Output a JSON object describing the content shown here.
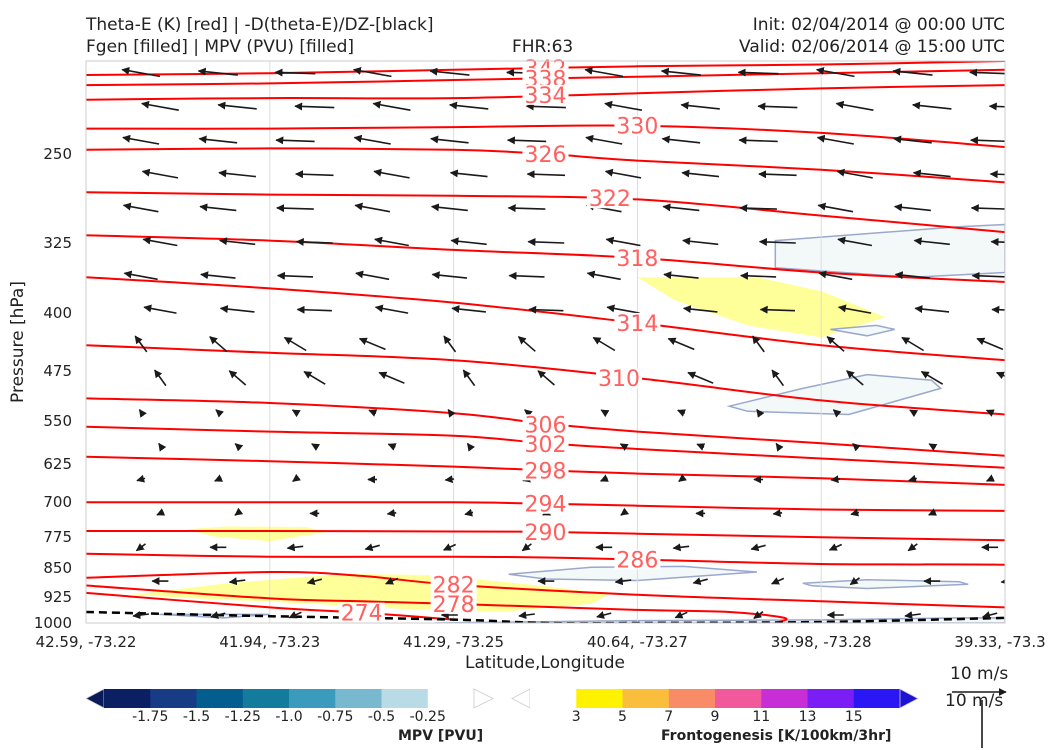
{
  "header": {
    "title_left_1": "Theta-E (K) [red] | -D(theta-E)/DZ-[black]",
    "title_left_2": "Fgen [filled] | MPV (PVU) [filled]",
    "fhr": "FHR:63",
    "init": "Init: 02/04/2014 @ 00:00 UTC",
    "valid": "Valid: 02/06/2014 @ 15:00 UTC"
  },
  "chart_data": {
    "type": "cross-section",
    "xlabel": "Latitude,Longitude",
    "ylabel": "Pressure [hPa]",
    "x_ticks": [
      "42.59, -73.22",
      "41.94, -73.23",
      "41.29, -73.25",
      "40.64, -73.27",
      "39.98, -73.28",
      "39.33, -73.3"
    ],
    "y_ticks": [
      250,
      325,
      400,
      475,
      550,
      625,
      700,
      775,
      850,
      925,
      1000
    ],
    "ylim": [
      1000,
      190
    ],
    "y_scale": "log",
    "theta_e_contours": [
      {
        "label": "342",
        "points": [
          [
            0,
            198
          ],
          [
            0.2,
            197
          ],
          [
            0.4,
            195
          ],
          [
            0.6,
            193
          ],
          [
            0.8,
            192
          ],
          [
            1,
            190
          ]
        ],
        "label_at": [
          0.5,
          194
        ]
      },
      {
        "label": "338",
        "points": [
          [
            0,
            204
          ],
          [
            0.2,
            203
          ],
          [
            0.4,
            201
          ],
          [
            0.6,
            199
          ],
          [
            0.8,
            197
          ],
          [
            1,
            195
          ]
        ],
        "label_at": [
          0.5,
          200
        ]
      },
      {
        "label": "334",
        "points": [
          [
            0,
            213
          ],
          [
            0.2,
            212
          ],
          [
            0.4,
            212
          ],
          [
            0.6,
            209
          ],
          [
            0.8,
            206
          ],
          [
            1,
            204
          ]
        ],
        "label_at": [
          0.5,
          210
        ]
      },
      {
        "label": "330",
        "points": [
          [
            0,
            232
          ],
          [
            0.2,
            232
          ],
          [
            0.4,
            231
          ],
          [
            0.6,
            230
          ],
          [
            0.8,
            235
          ],
          [
            1,
            245
          ]
        ],
        "label_at": [
          0.6,
          230
        ]
      },
      {
        "label": "326",
        "points": [
          [
            0,
            247
          ],
          [
            0.2,
            246
          ],
          [
            0.4,
            247
          ],
          [
            0.5,
            250
          ],
          [
            0.6,
            255
          ],
          [
            0.8,
            262
          ],
          [
            1,
            272
          ]
        ],
        "label_at": [
          0.5,
          250
        ]
      },
      {
        "label": "322",
        "points": [
          [
            0,
            280
          ],
          [
            0.2,
            282
          ],
          [
            0.4,
            283
          ],
          [
            0.6,
            286
          ],
          [
            0.8,
            300
          ],
          [
            1,
            315
          ]
        ],
        "label_at": [
          0.57,
          285
        ]
      },
      {
        "label": "318",
        "points": [
          [
            0,
            318
          ],
          [
            0.2,
            323
          ],
          [
            0.4,
            332
          ],
          [
            0.6,
            340
          ],
          [
            0.8,
            355
          ],
          [
            1,
            365
          ]
        ],
        "label_at": [
          0.6,
          340
        ]
      },
      {
        "label": "314",
        "points": [
          [
            0,
            360
          ],
          [
            0.2,
            372
          ],
          [
            0.4,
            388
          ],
          [
            0.6,
            412
          ],
          [
            0.8,
            440
          ],
          [
            1,
            460
          ]
        ],
        "label_at": [
          0.6,
          412
        ]
      },
      {
        "label": "310",
        "points": [
          [
            0,
            440
          ],
          [
            0.2,
            450
          ],
          [
            0.4,
            460
          ],
          [
            0.6,
            485
          ],
          [
            0.8,
            518
          ],
          [
            1,
            540
          ]
        ],
        "label_at": [
          0.58,
          485
        ]
      },
      {
        "label": "306",
        "points": [
          [
            0,
            515
          ],
          [
            0.2,
            522
          ],
          [
            0.4,
            538
          ],
          [
            0.5,
            555
          ],
          [
            0.6,
            568
          ],
          [
            0.8,
            588
          ],
          [
            1,
            610
          ]
        ],
        "label_at": [
          0.5,
          556
        ]
      },
      {
        "label": "302",
        "points": [
          [
            0,
            560
          ],
          [
            0.2,
            568
          ],
          [
            0.4,
            575
          ],
          [
            0.5,
            588
          ],
          [
            0.6,
            598
          ],
          [
            0.8,
            615
          ],
          [
            1,
            632
          ]
        ],
        "label_at": [
          0.5,
          589
        ]
      },
      {
        "label": "298",
        "points": [
          [
            0,
            612
          ],
          [
            0.2,
            620
          ],
          [
            0.4,
            630
          ],
          [
            0.5,
            637
          ],
          [
            0.6,
            643
          ],
          [
            0.8,
            652
          ],
          [
            1,
            665
          ]
        ],
        "label_at": [
          0.5,
          637
        ]
      },
      {
        "label": "294",
        "points": [
          [
            0,
            700
          ],
          [
            0.2,
            700
          ],
          [
            0.4,
            700
          ],
          [
            0.5,
            703
          ],
          [
            0.6,
            707
          ],
          [
            0.8,
            715
          ],
          [
            1,
            718
          ]
        ],
        "label_at": [
          0.5,
          703
        ]
      },
      {
        "label": "290",
        "points": [
          [
            0,
            762
          ],
          [
            0.2,
            762
          ],
          [
            0.4,
            763
          ],
          [
            0.5,
            764
          ],
          [
            0.6,
            768
          ],
          [
            0.8,
            776
          ],
          [
            1,
            783
          ]
        ],
        "label_at": [
          0.5,
          764
        ]
      },
      {
        "label": "286",
        "points": [
          [
            0,
            815
          ],
          [
            0.2,
            822
          ],
          [
            0.4,
            822
          ],
          [
            0.5,
            824
          ],
          [
            0.6,
            829
          ],
          [
            0.8,
            840
          ],
          [
            1,
            842
          ],
          [
            1.02,
            852
          ]
        ],
        "label_at": [
          0.6,
          829
        ]
      },
      {
        "label": "282",
        "points": [
          [
            0,
            875
          ],
          [
            0.2,
            860
          ],
          [
            0.3,
            870
          ],
          [
            0.4,
            893
          ],
          [
            0.6,
            920
          ],
          [
            0.8,
            938
          ],
          [
            1,
            955
          ]
        ],
        "label_at": [
          0.4,
          893
        ]
      },
      {
        "label": "278",
        "points": [
          [
            0,
            895
          ],
          [
            0.2,
            930
          ],
          [
            0.3,
            938
          ],
          [
            0.4,
            945
          ],
          [
            0.6,
            962
          ],
          [
            0.7,
            968
          ],
          [
            0.76,
            985
          ],
          [
            0.75,
            1000
          ]
        ],
        "label_at": [
          0.4,
          945
        ]
      },
      {
        "label": "274",
        "points": [
          [
            0,
            915
          ],
          [
            0.2,
            955
          ],
          [
            0.3,
            970
          ],
          [
            0.4,
            990
          ]
        ],
        "label_at": [
          0.3,
          970
        ]
      }
    ],
    "dtheta_dz_contours": [
      {
        "style": "dashed",
        "points": [
          [
            0,
            968
          ],
          [
            0.2,
            980
          ],
          [
            0.4,
            990
          ],
          [
            0.5,
            1000
          ],
          [
            0.6,
            1000
          ],
          [
            0.8,
            997
          ],
          [
            1,
            985
          ]
        ]
      }
    ],
    "mpv_filled_regions": [
      {
        "value": -0.25,
        "points": [
          [
            0.75,
            323
          ],
          [
            0.95,
            310
          ],
          [
            1,
            308
          ],
          [
            1,
            355
          ],
          [
            0.9,
            360
          ],
          [
            0.75,
            350
          ],
          [
            0.75,
            335
          ]
        ]
      },
      {
        "value": -0.25,
        "points": [
          [
            0.7,
            527
          ],
          [
            0.78,
            500
          ],
          [
            0.85,
            480
          ],
          [
            0.92,
            488
          ],
          [
            0.93,
            500
          ],
          [
            0.83,
            540
          ],
          [
            0.72,
            535
          ]
        ]
      },
      {
        "value": -0.25,
        "points": [
          [
            0.46,
            866
          ],
          [
            0.55,
            848
          ],
          [
            0.65,
            846
          ],
          [
            0.73,
            860
          ],
          [
            0.6,
            882
          ],
          [
            0.5,
            878
          ]
        ]
      },
      {
        "value": -0.25,
        "points": [
          [
            0.78,
            889
          ],
          [
            0.85,
            880
          ],
          [
            0.95,
            885
          ],
          [
            0.96,
            892
          ],
          [
            0.85,
            903
          ],
          [
            0.79,
            896
          ]
        ]
      },
      {
        "value": -0.25,
        "points": [
          [
            0.08,
            975
          ],
          [
            0.2,
            975
          ],
          [
            0.15,
            985
          ]
        ]
      },
      {
        "value": -0.25,
        "points": [
          [
            0.38,
            1000
          ],
          [
            0.6,
            993
          ],
          [
            0.8,
            991
          ],
          [
            0.95,
            985
          ],
          [
            1,
            985
          ],
          [
            1,
            1000
          ]
        ]
      },
      {
        "value": -0.25,
        "points": [
          [
            0.86,
            415
          ],
          [
            0.88,
            420
          ],
          [
            0.85,
            428
          ],
          [
            0.81,
            420
          ]
        ]
      }
    ],
    "fgen_filled_regions": [
      {
        "value": 3,
        "points": [
          [
            0.6,
            360
          ],
          [
            0.73,
            360
          ],
          [
            0.8,
            375
          ],
          [
            0.87,
            405
          ],
          [
            0.8,
            430
          ],
          [
            0.72,
            415
          ],
          [
            0.64,
            385
          ]
        ]
      },
      {
        "value": 3,
        "points": [
          [
            0.11,
            758
          ],
          [
            0.15,
            752
          ],
          [
            0.24,
            753
          ],
          [
            0.26,
            765
          ],
          [
            0.2,
            785
          ],
          [
            0.14,
            775
          ]
        ]
      },
      {
        "value": 3,
        "points": [
          [
            0.05,
            920
          ],
          [
            0.15,
            890
          ],
          [
            0.28,
            865
          ],
          [
            0.38,
            868
          ],
          [
            0.5,
            897
          ],
          [
            0.57,
            918
          ],
          [
            0.55,
            945
          ],
          [
            0.45,
            968
          ],
          [
            0.35,
            960
          ],
          [
            0.25,
            945
          ],
          [
            0.12,
            930
          ]
        ]
      }
    ],
    "wind_barbs_count": 200,
    "wind_reference": "10 m/s",
    "colorbars": [
      {
        "name": "MPV [PVU]",
        "colors": [
          "#0b1f63",
          "#173c85",
          "#035d8e",
          "#137b9c",
          "#3a9bbd",
          "#79b9d0",
          "#b9dbe5",
          "#ffffff"
        ],
        "labels": [
          "-1.75",
          "-1.5",
          "-1.25",
          "-1.0",
          "-0.75",
          "-0.5",
          "-0.25"
        ],
        "left_cap_color": "#0a1a5a",
        "right_cap_color": "#ffffff"
      },
      {
        "name": "Frontogenesis [K/100km/3hr]",
        "colors": [
          "#ffffff",
          "#fef200",
          "#fbbd3c",
          "#f88c66",
          "#f2599d",
          "#c82ed5",
          "#7a1ef5",
          "#2b17f3"
        ],
        "labels": [
          "3",
          "5",
          "7",
          "9",
          "11",
          "13",
          "15"
        ],
        "left_cap_color": "#ffffff",
        "right_cap_color": "#1d13d6"
      }
    ],
    "colors": {
      "theta_e": "#ff0000",
      "contour_labels": "#ff6060",
      "barbs": "#1a1a1a",
      "mpv_outline": "#9aa8cc"
    }
  }
}
